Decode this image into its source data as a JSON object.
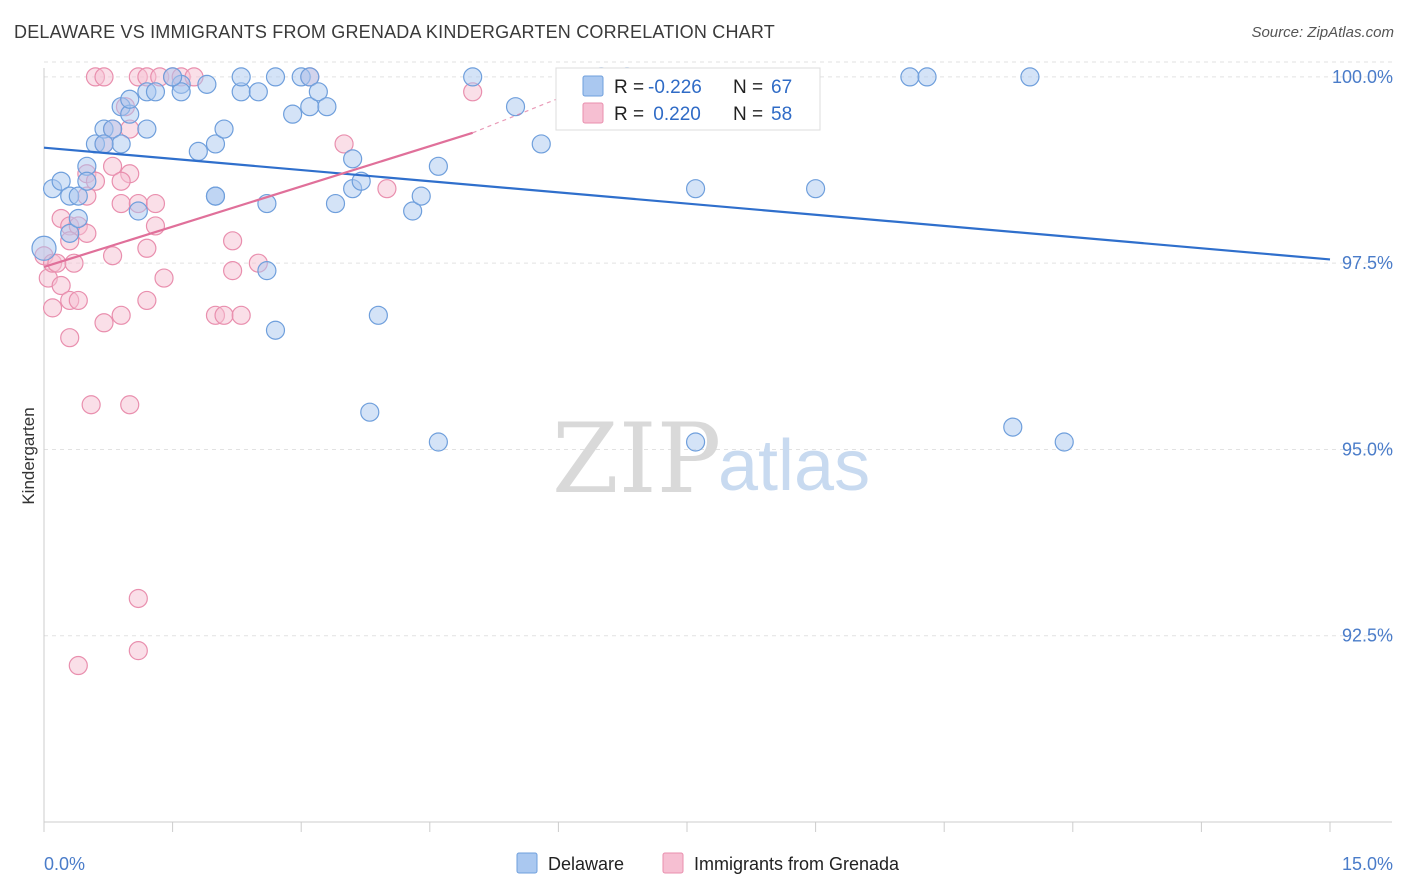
{
  "title": "DELAWARE VS IMMIGRANTS FROM GRENADA KINDERGARTEN CORRELATION CHART",
  "source": "Source: ZipAtlas.com",
  "watermark": {
    "zip": "ZIP",
    "atlas": "atlas"
  },
  "colors": {
    "blue_fill": "#aac8f0",
    "blue_stroke": "#6f9fdc",
    "blue_line": "#2f6fcc",
    "pink_fill": "#f6bfd2",
    "pink_stroke": "#e98fae",
    "pink_line": "#e0709a",
    "grid": "#e2e2e2",
    "tick_label": "#4a7cc9"
  },
  "stats_legend": {
    "rows": [
      {
        "r_label": "R = ",
        "r_value": "-0.226",
        "n_label": "N = ",
        "n_value": "67"
      },
      {
        "r_label": "R = ",
        "r_value": " 0.220",
        "n_label": "N = ",
        "n_value": "58"
      }
    ]
  },
  "bottom_legend": [
    "Delaware",
    "Immigrants from Grenada"
  ],
  "chart_data": {
    "type": "scatter",
    "title": "DELAWARE VS IMMIGRANTS FROM GRENADA KINDERGARTEN CORRELATION CHART",
    "xlabel": "",
    "ylabel": "Kindergarten",
    "xlim": [
      0.0,
      15.0
    ],
    "ylim": [
      90.0,
      100.2
    ],
    "x_tick_labels": [
      "0.0%",
      "15.0%"
    ],
    "y_tick_labels": [
      "100.0%",
      "97.5%",
      "95.0%",
      "92.5%"
    ],
    "y_tick_values": [
      100.0,
      97.5,
      95.0,
      92.5
    ],
    "grid": true,
    "legend_position": "top-center",
    "series": [
      {
        "name": "Delaware",
        "r": -0.226,
        "n": 67,
        "trend": {
          "x": [
            0.0,
            15.0
          ],
          "y": [
            99.05,
            97.55
          ]
        },
        "points": [
          [
            0.1,
            97.7
          ],
          [
            0.1,
            98.5
          ],
          [
            0.2,
            98.6
          ],
          [
            0.3,
            97.9
          ],
          [
            0.3,
            98.4
          ],
          [
            0.4,
            98.4
          ],
          [
            0.4,
            98.1
          ],
          [
            0.5,
            98.8
          ],
          [
            0.6,
            99.1
          ],
          [
            0.6,
            98.9
          ],
          [
            0.7,
            98.6
          ],
          [
            0.7,
            99.3
          ],
          [
            0.8,
            99.3
          ],
          [
            0.9,
            99.1
          ],
          [
            0.9,
            99.6
          ],
          [
            1.0,
            99.5
          ],
          [
            1.0,
            99.7
          ],
          [
            1.2,
            98.2
          ],
          [
            1.2,
            99.7
          ],
          [
            1.3,
            99.8
          ],
          [
            1.3,
            99.3
          ],
          [
            1.4,
            99.8
          ],
          [
            1.5,
            99.8
          ],
          [
            1.5,
            100.0
          ],
          [
            1.5,
            100.0
          ],
          [
            1.5,
            100.0
          ],
          [
            1.5,
            100.0
          ],
          [
            1.5,
            100.0
          ],
          [
            1.5,
            100.0
          ],
          [
            1.5,
            100.0
          ],
          [
            1.5,
            100.0
          ],
          [
            1.5,
            100.0
          ],
          [
            1.5,
            100.0
          ],
          [
            1.5,
            100.0
          ],
          [
            1.5,
            100.0
          ],
          [
            1.5,
            100.0
          ],
          [
            1.5,
            100.0
          ],
          [
            1.5,
            100.0
          ],
          [
            1.5,
            100.0
          ],
          [
            1.5,
            100.0
          ],
          [
            1.5,
            100.0
          ],
          [
            1.5,
            100.0
          ],
          [
            1.5,
            100.0
          ],
          [
            1.5,
            100.0
          ],
          [
            1.5,
            100.0
          ],
          [
            1.5,
            100.0
          ],
          [
            1.5,
            100.0
          ],
          [
            1.5,
            100.0
          ],
          [
            1.5,
            100.0
          ],
          [
            1.5,
            100.0
          ],
          [
            1.5,
            100.0
          ],
          [
            1.5,
            100.0
          ],
          [
            1.5,
            100.0
          ],
          [
            1.5,
            100.0
          ],
          [
            1.5,
            100.0
          ],
          [
            1.5,
            100.0
          ],
          [
            1.5,
            100.0
          ],
          [
            1.5,
            100.0
          ],
          [
            1.5,
            100.0
          ],
          [
            1.5,
            100.0
          ],
          [
            1.5,
            100.0
          ],
          [
            1.5,
            100.0
          ],
          [
            1.5,
            100.0
          ],
          [
            1.5,
            100.0
          ],
          [
            1.5,
            100.0
          ],
          [
            1.5,
            100.0
          ],
          [
            1.5,
            100.0
          ]
        ]
      },
      {
        "name": "Immigrants from Grenada",
        "r": 0.22,
        "n": 58,
        "trend": {
          "x": [
            0.0,
            5.0
          ],
          "y": [
            97.45,
            99.25
          ]
        },
        "trend_dashed": {
          "x": [
            5.0,
            6.3
          ],
          "y": [
            99.25,
            99.85
          ]
        }
      }
    ]
  }
}
